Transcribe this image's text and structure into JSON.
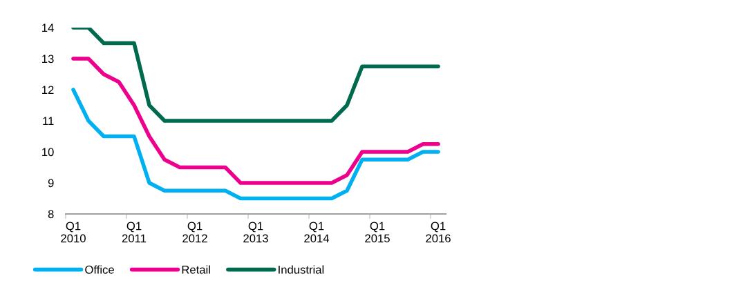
{
  "chart_data": {
    "type": "line",
    "categories": [
      "Q1\n2010",
      null,
      null,
      null,
      "Q1\n2011",
      null,
      null,
      null,
      "Q1\n2012",
      null,
      null,
      null,
      "Q1\n2013",
      null,
      null,
      null,
      "Q1\n2014",
      null,
      null,
      null,
      "Q1\n2015",
      null,
      null,
      null,
      "Q1\n2016"
    ],
    "series": [
      {
        "name": "Office",
        "color": "#00b0f0",
        "values": [
          12,
          11,
          10.5,
          10.5,
          10.5,
          9,
          8.75,
          8.75,
          8.75,
          8.75,
          8.75,
          8.5,
          8.5,
          8.5,
          8.5,
          8.5,
          8.5,
          8.5,
          8.75,
          9.75,
          9.75,
          9.75,
          9.75,
          10,
          10
        ]
      },
      {
        "name": "Retail",
        "color": "#ec008c",
        "values": [
          13,
          13,
          12.5,
          12.25,
          11.5,
          10.5,
          9.75,
          9.5,
          9.5,
          9.5,
          9.5,
          9,
          9,
          9,
          9,
          9,
          9,
          9,
          9.25,
          10,
          10,
          10,
          10,
          10.25,
          10.25
        ]
      },
      {
        "name": "Industrial",
        "color": "#006a4e",
        "values": [
          14,
          14,
          13.5,
          13.5,
          13.5,
          11.5,
          11,
          11,
          11,
          11,
          11,
          11,
          11,
          11,
          11,
          11,
          11,
          11,
          11.5,
          12.75,
          12.75,
          12.75,
          12.75,
          12.75,
          12.75
        ]
      }
    ],
    "ylim": [
      8,
      14
    ],
    "yticks": [
      8,
      9,
      10,
      11,
      12,
      13,
      14
    ],
    "grid": false,
    "legend": "bottom",
    "marker": "none",
    "line_style": "solid"
  }
}
